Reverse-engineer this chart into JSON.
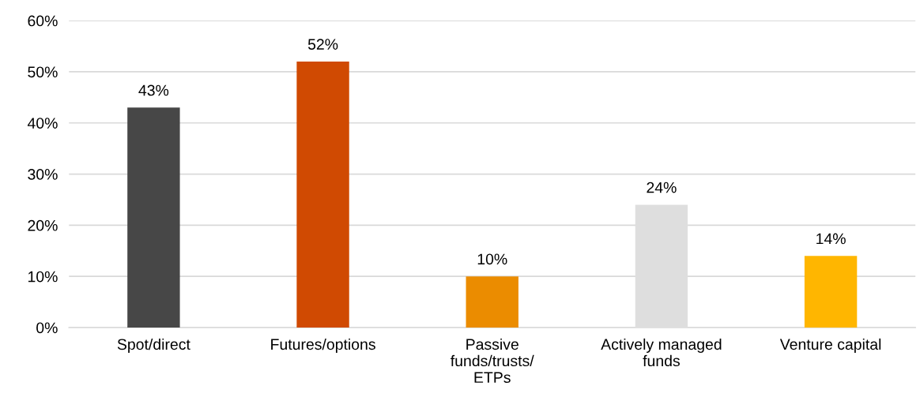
{
  "chart_data": {
    "type": "bar",
    "categories": [
      "Spot/direct",
      "Futures/options",
      "Passive\nfunds/trusts/\nETPs",
      "Actively managed\nfunds",
      "Venture capital"
    ],
    "values": [
      43,
      52,
      10,
      24,
      14
    ],
    "colors": [
      "#474747",
      "#d04a02",
      "#eb8c00",
      "#dedede",
      "#ffb600"
    ],
    "value_labels": [
      "43%",
      "52%",
      "10%",
      "24%",
      "14%"
    ],
    "ylim": [
      0,
      60
    ],
    "yticks": [
      {
        "value": 0,
        "label": "0%"
      },
      {
        "value": 10,
        "label": "10%"
      },
      {
        "value": 20,
        "label": "20%"
      },
      {
        "value": 30,
        "label": "30%"
      },
      {
        "value": 40,
        "label": "40%"
      },
      {
        "value": 50,
        "label": "50%"
      },
      {
        "value": 60,
        "label": "60%"
      }
    ],
    "grid": "y",
    "legend": false
  }
}
